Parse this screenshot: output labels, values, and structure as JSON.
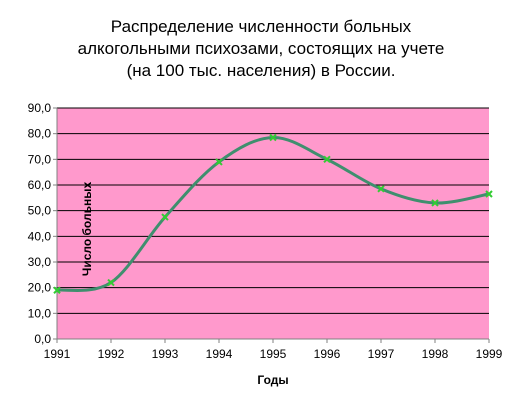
{
  "colors": {
    "plot_bg": "#ff99cc",
    "line": "#3f8f6e",
    "marker": "#33cc33",
    "grid": "#000000",
    "axis": "#808080"
  },
  "chart_data": {
    "type": "line",
    "title_lines": [
      "Распределение численности больных",
      "алкогольными психозами, состоящих на учете",
      "(на 100 тыс. населения) в России."
    ],
    "xlabel": "Годы",
    "ylabel": "Число больных",
    "x": [
      1991,
      1992,
      1993,
      1994,
      1995,
      1996,
      1997,
      1998,
      1999
    ],
    "x_tick_labels": [
      "1991",
      "1992",
      "1993",
      "1994",
      "1995",
      "1996",
      "1997",
      "1998",
      "1999"
    ],
    "ylim": [
      0,
      90
    ],
    "y_tick_labels": [
      "0,0",
      "10,0",
      "20,0",
      "30,0",
      "40,0",
      "50,0",
      "60,0",
      "70,0",
      "80,0",
      "90,0"
    ],
    "series": [
      {
        "values": [
          19.0,
          22.0,
          47.5,
          69.0,
          78.5,
          70.0,
          58.5,
          53.0,
          56.5
        ]
      }
    ],
    "smoothed": true,
    "grid": true
  }
}
